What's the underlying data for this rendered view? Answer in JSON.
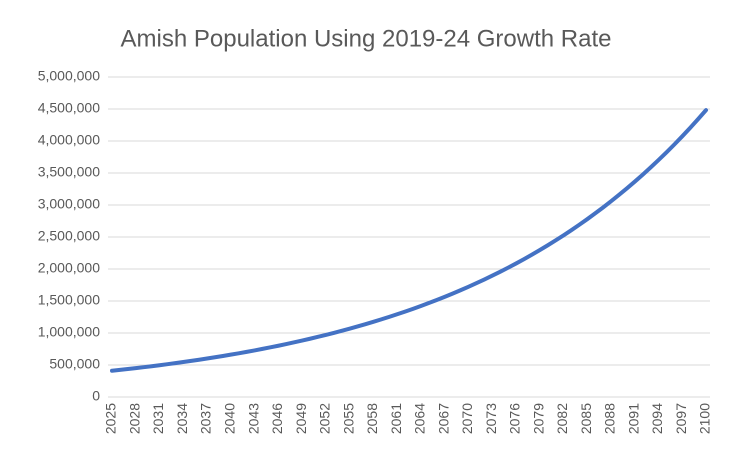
{
  "chart_data": {
    "type": "line",
    "title": "Amish Population Using 2019-24 Growth Rate",
    "x": [
      2025,
      2026,
      2027,
      2028,
      2029,
      2030,
      2031,
      2032,
      2033,
      2034,
      2035,
      2036,
      2037,
      2038,
      2039,
      2040,
      2041,
      2042,
      2043,
      2044,
      2045,
      2046,
      2047,
      2048,
      2049,
      2050,
      2051,
      2052,
      2053,
      2054,
      2055,
      2056,
      2057,
      2058,
      2059,
      2060,
      2061,
      2062,
      2063,
      2064,
      2065,
      2066,
      2067,
      2068,
      2069,
      2070,
      2071,
      2072,
      2073,
      2074,
      2075,
      2076,
      2077,
      2078,
      2079,
      2080,
      2081,
      2082,
      2083,
      2084,
      2085,
      2086,
      2087,
      2088,
      2089,
      2090,
      2091,
      2092,
      2093,
      2094,
      2095,
      2096,
      2097,
      2098,
      2099,
      2100
    ],
    "series": [
      {
        "name": "Amish Population",
        "color": "#4472c4",
        "values": [
          410000,
          423300,
          437000,
          451200,
          465800,
          480900,
          496500,
          512600,
          529200,
          546300,
          564000,
          582300,
          601200,
          620700,
          640800,
          661600,
          683000,
          705100,
          728000,
          751600,
          775900,
          801100,
          827000,
          853800,
          881500,
          910100,
          939600,
          970000,
          1001400,
          1033900,
          1067400,
          1102000,
          1137700,
          1174600,
          1212600,
          1251900,
          1292500,
          1334400,
          1377600,
          1422200,
          1468300,
          1515900,
          1565000,
          1615700,
          1668100,
          1722100,
          1777900,
          1835500,
          1895000,
          1956400,
          2019800,
          2085200,
          2152800,
          2222600,
          2294600,
          2368900,
          2445700,
          2524900,
          2606700,
          2691200,
          2778400,
          2868400,
          2961300,
          3057300,
          3156300,
          3258600,
          3364200,
          3473200,
          3585700,
          3701900,
          3821800,
          3945600,
          4073400,
          4205400,
          4341700,
          4482300
        ]
      }
    ],
    "xlim": [
      2025,
      2100
    ],
    "xticks": [
      2025,
      2028,
      2031,
      2034,
      2037,
      2040,
      2043,
      2046,
      2049,
      2052,
      2055,
      2058,
      2061,
      2064,
      2067,
      2070,
      2073,
      2076,
      2079,
      2082,
      2085,
      2088,
      2091,
      2094,
      2097,
      2100
    ],
    "ylim": [
      0,
      5000000
    ],
    "yticks": [
      0,
      {
        "value": 500000,
        "label": "500,000"
      },
      {
        "value": 1000000,
        "label": "1,000,000"
      },
      {
        "value": 1500000,
        "label": "1,500,000"
      },
      {
        "value": 2000000,
        "label": "2,000,000"
      },
      {
        "value": 2500000,
        "label": "2,500,000"
      },
      {
        "value": 3000000,
        "label": "3,000,000"
      },
      {
        "value": 3500000,
        "label": "3,500,000"
      },
      {
        "value": 4000000,
        "label": "4,000,000"
      },
      {
        "value": 4500000,
        "label": "4,500,000"
      },
      {
        "value": 5000000,
        "label": "5,000,000"
      }
    ],
    "grid": true
  }
}
